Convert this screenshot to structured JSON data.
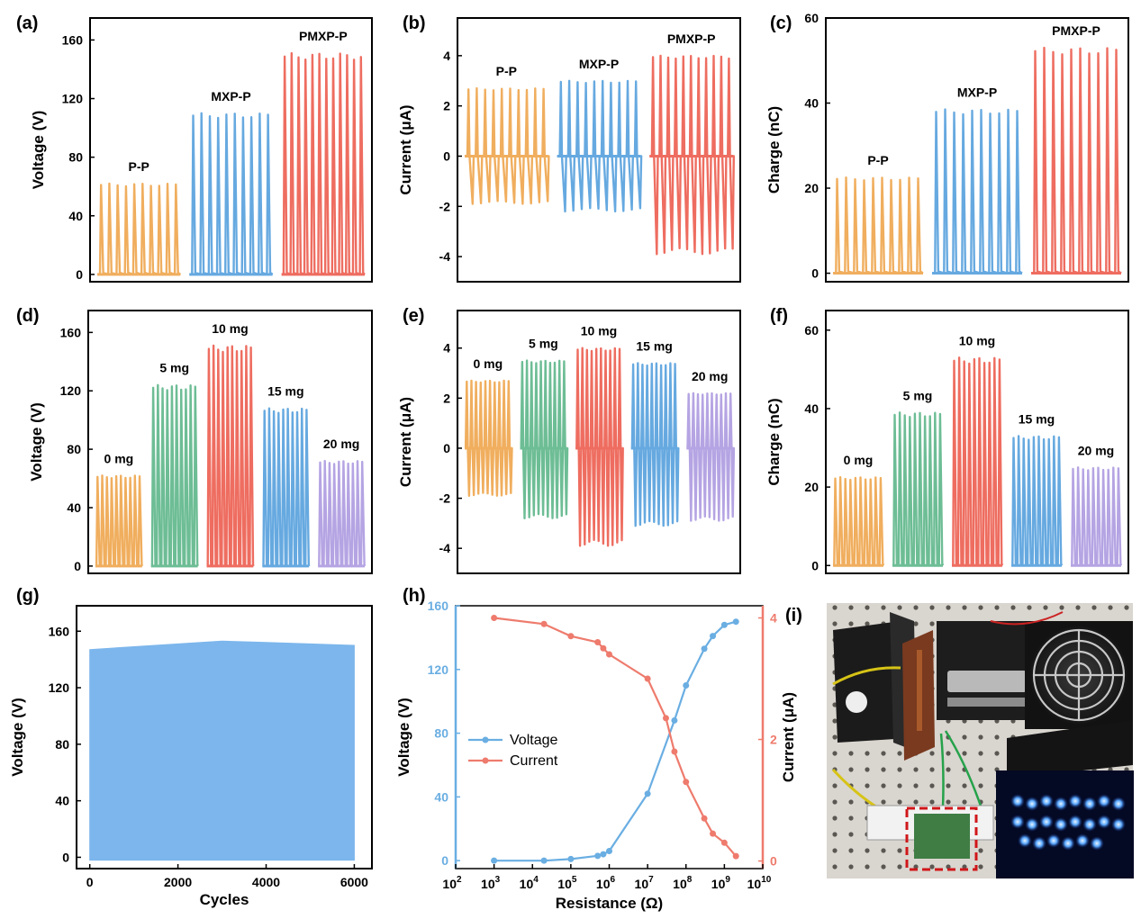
{
  "chart_data": [
    {
      "id": "a",
      "panel_label": "(a)",
      "type": "line",
      "ylabel": "Voltage (V)",
      "ylim": [
        -5,
        175
      ],
      "yticks": [
        0,
        40,
        80,
        120,
        160
      ],
      "groups": [
        {
          "label": "P-P",
          "color": "#F0AE5E",
          "min": 0,
          "max": 62,
          "peaks": 10
        },
        {
          "label": "MXP-P",
          "color": "#66A9E0",
          "min": 0,
          "max": 110,
          "peaks": 10
        },
        {
          "label": "PMXP-P",
          "color": "#EE6D60",
          "min": 0,
          "max": 151,
          "peaks": 12
        }
      ]
    },
    {
      "id": "b",
      "panel_label": "(b)",
      "type": "line",
      "ylabel": "Current (μA)",
      "ylim": [
        -5,
        5.5
      ],
      "yticks": [
        -4,
        -2,
        0,
        2,
        4
      ],
      "groups": [
        {
          "label": "P-P",
          "color": "#F0AE5E",
          "min": -1.9,
          "max": 2.7,
          "peaks": 10
        },
        {
          "label": "MXP-P",
          "color": "#66A9E0",
          "min": -2.2,
          "max": 3.0,
          "peaks": 10
        },
        {
          "label": "PMXP-P",
          "color": "#EE6D60",
          "min": -3.9,
          "max": 4.0,
          "peaks": 11
        }
      ]
    },
    {
      "id": "c",
      "panel_label": "(c)",
      "type": "line",
      "ylabel": "Charge (nC)",
      "ylim": [
        -2,
        60
      ],
      "yticks": [
        0,
        20,
        40,
        60
      ],
      "groups": [
        {
          "label": "P-P",
          "color": "#F0AE5E",
          "min": 0,
          "max": 22.5,
          "peaks": 10
        },
        {
          "label": "MXP-P",
          "color": "#66A9E0",
          "min": 0,
          "max": 38.5,
          "peaks": 10
        },
        {
          "label": "PMXP-P",
          "color": "#EE6D60",
          "min": 0,
          "max": 53,
          "peaks": 10
        }
      ]
    },
    {
      "id": "d",
      "panel_label": "(d)",
      "type": "line",
      "ylabel": "Voltage (V)",
      "ylim": [
        -5,
        175
      ],
      "yticks": [
        0,
        40,
        80,
        120,
        160
      ],
      "groups": [
        {
          "label": "0 mg",
          "color": "#F0AE5E",
          "min": 0,
          "max": 62,
          "peaks": 10
        },
        {
          "label": "5 mg",
          "color": "#6DBD95",
          "min": 0,
          "max": 124,
          "peaks": 10
        },
        {
          "label": "10 mg",
          "color": "#EE6D60",
          "min": 0,
          "max": 151,
          "peaks": 10
        },
        {
          "label": "15 mg",
          "color": "#66A9E0",
          "min": 0,
          "max": 108,
          "peaks": 10
        },
        {
          "label": "20 mg",
          "color": "#B5A4E3",
          "min": 0,
          "max": 72,
          "peaks": 10
        }
      ]
    },
    {
      "id": "e",
      "panel_label": "(e)",
      "type": "line",
      "ylabel": "Current (μA)",
      "ylim": [
        -5,
        5.5
      ],
      "yticks": [
        -4,
        -2,
        0,
        2,
        4
      ],
      "groups": [
        {
          "label": "0 mg",
          "color": "#F0AE5E",
          "min": -1.9,
          "max": 2.7,
          "peaks": 10
        },
        {
          "label": "5 mg",
          "color": "#6DBD95",
          "min": -2.8,
          "max": 3.5,
          "peaks": 10
        },
        {
          "label": "10 mg",
          "color": "#EE6D60",
          "min": -3.9,
          "max": 4.0,
          "peaks": 10
        },
        {
          "label": "15 mg",
          "color": "#66A9E0",
          "min": -3.1,
          "max": 3.4,
          "peaks": 10
        },
        {
          "label": "20 mg",
          "color": "#B5A4E3",
          "min": -2.9,
          "max": 2.2,
          "peaks": 10
        }
      ]
    },
    {
      "id": "f",
      "panel_label": "(f)",
      "type": "line",
      "ylabel": "Charge (nC)",
      "ylim": [
        -2,
        65
      ],
      "yticks": [
        0,
        20,
        40,
        60
      ],
      "groups": [
        {
          "label": "0 mg",
          "color": "#F0AE5E",
          "min": 0,
          "max": 22.5,
          "peaks": 10
        },
        {
          "label": "5 mg",
          "color": "#6DBD95",
          "min": 0,
          "max": 39,
          "peaks": 10
        },
        {
          "label": "10 mg",
          "color": "#EE6D60",
          "min": 0,
          "max": 53,
          "peaks": 10
        },
        {
          "label": "15 mg",
          "color": "#66A9E0",
          "min": 0,
          "max": 33,
          "peaks": 10
        },
        {
          "label": "20 mg",
          "color": "#B5A4E3",
          "min": 0,
          "max": 25,
          "peaks": 10
        }
      ]
    },
    {
      "id": "g",
      "panel_label": "(g)",
      "type": "area",
      "xlabel": "Cycles",
      "ylabel": "Voltage (V)",
      "xlim": [
        -300,
        6400
      ],
      "ylim": [
        -8,
        178
      ],
      "xticks": [
        0,
        2000,
        4000,
        6000
      ],
      "yticks": [
        0,
        40,
        80,
        120,
        160
      ],
      "color": "#7CB6EC",
      "x": [
        0,
        1000,
        2000,
        3000,
        4000,
        5000,
        6000
      ],
      "y_max": [
        147,
        149,
        151,
        153,
        152,
        151,
        150
      ],
      "y_min": -2
    },
    {
      "id": "h",
      "panel_label": "(h)",
      "type": "line",
      "xlabel": "Resistance (Ω)",
      "ylabel": "Voltage (V)",
      "y2label": "Current (μA)",
      "xscale": "log",
      "xlim": [
        100,
        10000000000
      ],
      "ylim": [
        -5,
        160
      ],
      "y2lim": [
        -0.125,
        4.2
      ],
      "yticks": [
        0,
        40,
        80,
        120,
        160
      ],
      "y2ticks": [
        0,
        2,
        4
      ],
      "xtick_exponents": [
        2,
        3,
        4,
        5,
        6,
        7,
        8,
        9,
        10
      ],
      "legend": "center-left",
      "series": [
        {
          "name": "Voltage",
          "axis": "left",
          "color": "#6AAEE2",
          "x": [
            1000,
            20000,
            100000,
            500000,
            700000,
            1000000,
            10000000,
            50000000,
            100000000,
            300000000,
            500000000,
            1000000000,
            2000000000
          ],
          "y": [
            0,
            0,
            1,
            3,
            4,
            6,
            42,
            88,
            110,
            133,
            141,
            148,
            150
          ]
        },
        {
          "name": "Current",
          "axis": "right",
          "color": "#EE7B6D",
          "x": [
            1000,
            20000,
            100000,
            500000,
            700000,
            1000000,
            10000000,
            30000000,
            50000000,
            100000000,
            300000000,
            500000000,
            1000000000,
            2000000000
          ],
          "y": [
            4.0,
            3.9,
            3.7,
            3.6,
            3.5,
            3.4,
            3.0,
            2.35,
            1.8,
            1.3,
            0.7,
            0.45,
            0.3,
            0.08
          ]
        }
      ]
    }
  ],
  "photo": {
    "panel_label": "(i)"
  }
}
